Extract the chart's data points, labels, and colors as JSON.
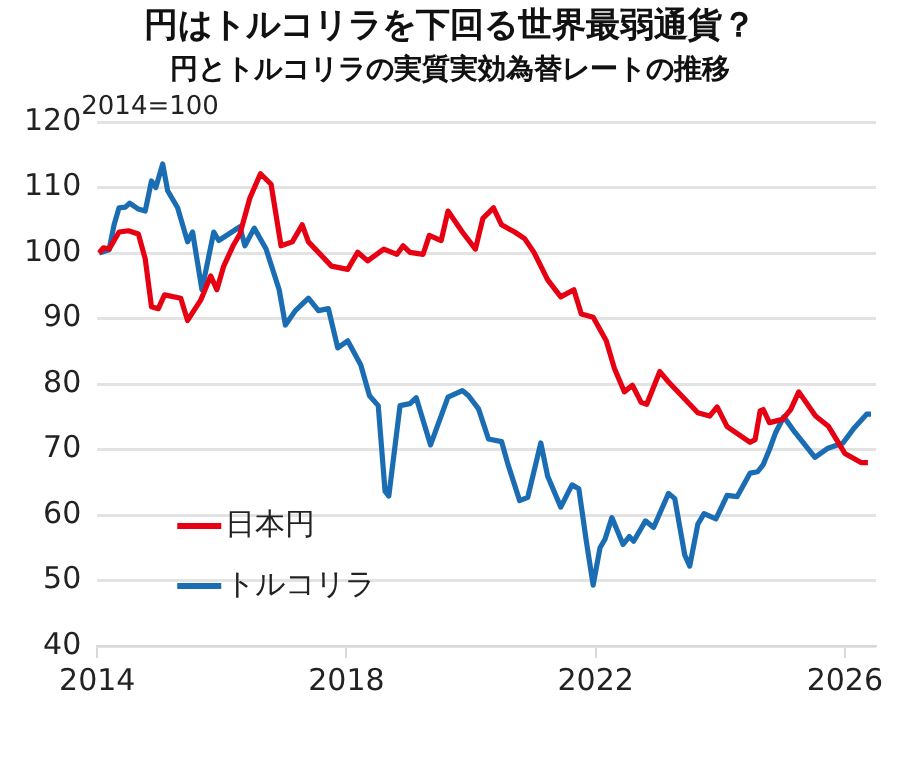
{
  "chart_data": {
    "type": "line",
    "title": "円はトルコリラを下回る世界最弱通貨？",
    "subtitle": "円とトルコリラの実質実効為替レートの推移",
    "ylabel": "2014=100",
    "xlim": [
      2014,
      2026.5
    ],
    "xticks": [
      2014,
      2018,
      2022,
      2026
    ],
    "ylim": [
      40,
      120
    ],
    "yticks": [
      40,
      50,
      60,
      70,
      80,
      90,
      100,
      110,
      120
    ],
    "grid": "y",
    "legend": "bottom left",
    "marker": "none",
    "line_style": "solid",
    "series": [
      {
        "name": "日本円",
        "color": "#e60012",
        "x": [
          2014.03,
          2014.1,
          2014.19,
          2014.35,
          2014.5,
          2014.66,
          2014.77,
          2014.87,
          2014.98,
          2015.08,
          2015.34,
          2015.45,
          2015.66,
          2015.82,
          2015.92,
          2016.03,
          2016.18,
          2016.29,
          2016.45,
          2016.62,
          2016.79,
          2016.95,
          2017.13,
          2017.29,
          2017.39,
          2017.55,
          2017.76,
          2018.02,
          2018.18,
          2018.34,
          2018.6,
          2018.81,
          2018.91,
          2019.02,
          2019.23,
          2019.33,
          2019.52,
          2019.63,
          2019.86,
          2020.07,
          2020.19,
          2020.36,
          2020.49,
          2020.7,
          2020.86,
          2021.01,
          2021.23,
          2021.44,
          2021.65,
          2021.77,
          2021.96,
          2022.17,
          2022.3,
          2022.46,
          2022.59,
          2022.73,
          2022.82,
          2023.03,
          2023.17,
          2023.43,
          2023.64,
          2023.83,
          2023.95,
          2024.11,
          2024.48,
          2024.56,
          2024.64,
          2024.69,
          2024.79,
          2025.0,
          2025.13,
          2025.26,
          2025.53,
          2025.74,
          2026.0,
          2026.26,
          2026.37
        ],
        "values": [
          100,
          100.8,
          100.6,
          103.2,
          103.4,
          102.9,
          99.1,
          91.8,
          91.5,
          93.6,
          93.1,
          89.7,
          92.8,
          96.5,
          94.4,
          98,
          101.1,
          102.9,
          108.4,
          112.1,
          110.5,
          101.1,
          101.7,
          104.3,
          101.7,
          100.1,
          98,
          97.5,
          100.1,
          98.8,
          100.6,
          99.8,
          101.1,
          100.1,
          99.8,
          102.7,
          101.9,
          106.4,
          103.2,
          100.6,
          105.3,
          106.9,
          104.3,
          103.2,
          102.2,
          100.1,
          95.9,
          93.3,
          94.4,
          90.7,
          90.2,
          86.6,
          82.4,
          78.8,
          79.8,
          77.2,
          76.9,
          81.9,
          80.3,
          77.7,
          75.6,
          75.1,
          76.5,
          73.5,
          71.1,
          71.5,
          75.9,
          76.1,
          74.1,
          74.6,
          76.1,
          78.8,
          75.1,
          73.5,
          69.4,
          68,
          68
        ]
      },
      {
        "name": "トルコリラ",
        "color": "#1b6db3",
        "x": [
          2014.03,
          2014.19,
          2014.27,
          2014.35,
          2014.45,
          2014.52,
          2014.66,
          2014.77,
          2014.87,
          2014.94,
          2015.05,
          2015.13,
          2015.29,
          2015.45,
          2015.53,
          2015.68,
          2015.87,
          2015.95,
          2016.29,
          2016.37,
          2016.52,
          2016.71,
          2016.92,
          2017.02,
          2017.18,
          2017.39,
          2017.55,
          2017.71,
          2017.86,
          2018.02,
          2018.23,
          2018.37,
          2018.51,
          2018.62,
          2018.68,
          2018.86,
          2019.02,
          2019.12,
          2019.35,
          2019.63,
          2019.86,
          2019.96,
          2020.12,
          2020.28,
          2020.49,
          2020.59,
          2020.78,
          2020.91,
          2021.12,
          2021.23,
          2021.44,
          2021.62,
          2021.73,
          2021.85,
          2021.96,
          2022.07,
          2022.15,
          2022.26,
          2022.44,
          2022.54,
          2022.61,
          2022.8,
          2022.93,
          2023.17,
          2023.27,
          2023.43,
          2023.51,
          2023.64,
          2023.74,
          2023.93,
          2024.11,
          2024.27,
          2024.48,
          2024.6,
          2024.69,
          2024.79,
          2024.89,
          2025.02,
          2025.2,
          2025.52,
          2025.73,
          2025.97,
          2026.15,
          2026.35,
          2026.42
        ],
        "values": [
          100,
          100.5,
          104.3,
          106.9,
          107,
          107.6,
          106.7,
          106.4,
          111,
          110,
          113.6,
          109.5,
          106.9,
          101.7,
          103.2,
          94.4,
          103.2,
          101.9,
          104,
          101.1,
          103.8,
          100.6,
          94.4,
          89,
          91.2,
          93.1,
          91.2,
          91.5,
          85.5,
          86.6,
          82.9,
          78.2,
          76.7,
          63.6,
          62.9,
          76.7,
          77,
          77.9,
          70.7,
          78,
          79,
          78.2,
          76.2,
          71.6,
          71.2,
          67.8,
          62.2,
          62.7,
          71,
          65.9,
          61.2,
          64.6,
          64,
          56,
          49.3,
          55,
          56.3,
          59.6,
          55.5,
          56.7,
          56,
          59.1,
          58.1,
          63.3,
          62.5,
          53.9,
          52.2,
          58.6,
          60.2,
          59.4,
          63,
          62.8,
          66.4,
          66.6,
          67.7,
          70,
          72.6,
          75,
          72.6,
          68.8,
          70.2,
          71,
          73.3,
          75.4,
          75.4
        ]
      }
    ]
  }
}
